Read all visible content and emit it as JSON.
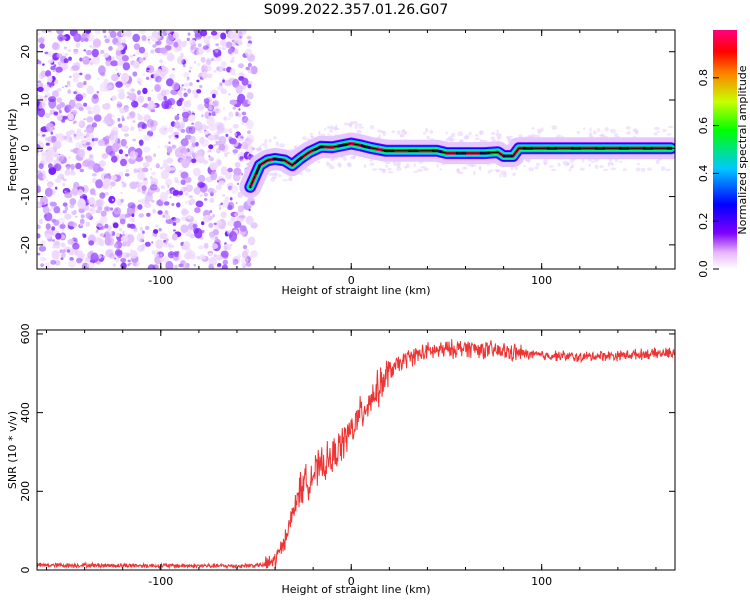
{
  "title": "S099.2022.357.01.26.G07",
  "chart_data": [
    {
      "type": "heatmap",
      "xlabel": "Height of straight line (km)",
      "ylabel": "Frequency (Hz)",
      "xlim": [
        -165,
        170
      ],
      "ylim": [
        -25,
        24.5
      ],
      "xticks": [
        -100,
        0,
        100
      ],
      "yticks": [
        -20,
        -10,
        0,
        10,
        20
      ],
      "noise_region_x": [
        -165,
        -53
      ],
      "ridge": {
        "x": [
          -53,
          -48,
          -44,
          -40,
          -35,
          -31,
          -27,
          -22,
          -16,
          -10,
          -5,
          0,
          5,
          10,
          18,
          30,
          45,
          50,
          60,
          70,
          77,
          80,
          85,
          88,
          100,
          120,
          140,
          160,
          168
        ],
        "freq": [
          -8,
          -3.5,
          -2.5,
          -2.2,
          -2.5,
          -3.5,
          -2.2,
          -0.8,
          0.3,
          0.2,
          0.6,
          1.0,
          0.6,
          0.1,
          -0.5,
          -0.5,
          -0.5,
          -1.0,
          -1.0,
          -1.0,
          -0.8,
          -1.6,
          -1.6,
          0.0,
          0.0,
          0.0,
          0.0,
          0.0,
          0.0
        ]
      },
      "colorbar": {
        "label": "Normalized spectral amplitude",
        "range": [
          0,
          1
        ],
        "ticks": [
          "0.0",
          "0.2",
          "0.4",
          "0.6",
          "0.8"
        ],
        "colors": [
          "#ffffff",
          "#e8b3ff",
          "#7f00ff",
          "#0000ff",
          "#00c8ff",
          "#00ff00",
          "#c8ff00",
          "#ff8000",
          "#ff0000",
          "#ff0080"
        ]
      }
    },
    {
      "type": "line",
      "xlabel": "Height of straight line (km)",
      "ylabel": "SNR (10 * v/v)",
      "xlim": [
        -165,
        170
      ],
      "ylim": [
        0,
        610
      ],
      "xticks": [
        -100,
        0,
        100
      ],
      "yticks": [
        0,
        200,
        400,
        600
      ],
      "line_color": "#ee3333",
      "series": [
        {
          "x": [
            -165,
            -140,
            -100,
            -60,
            -45,
            -40,
            -36,
            -33,
            -30,
            -28,
            -25,
            -20,
            -15,
            -10,
            -5,
            0,
            5,
            10,
            15,
            20,
            30,
            40,
            50,
            60,
            70,
            80,
            90,
            100,
            110,
            120,
            130,
            140,
            150,
            160,
            170
          ],
          "y": [
            12,
            12,
            11,
            10,
            13,
            25,
            60,
            110,
            150,
            195,
            215,
            245,
            265,
            285,
            320,
            355,
            395,
            435,
            465,
            505,
            540,
            555,
            560,
            565,
            560,
            555,
            550,
            545,
            545,
            540,
            545,
            545,
            548,
            550,
            552
          ]
        }
      ]
    }
  ]
}
